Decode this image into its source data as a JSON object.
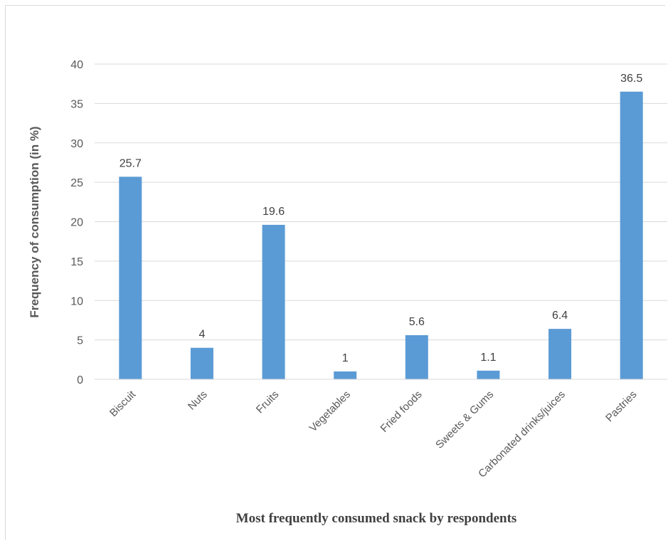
{
  "chart_data": {
    "type": "bar",
    "title": "",
    "xlabel": "Most frequently  consumed snack by respondents",
    "ylabel": "Frequency of consumption (in %)",
    "categories": [
      "Biscuit",
      "Nuts",
      "Fruits",
      "Vegetables",
      "Fried foods",
      "Sweets & Gums",
      "Carbonated drinks/juices",
      "Pastries"
    ],
    "values": [
      25.7,
      4,
      19.6,
      1,
      5.6,
      1.1,
      6.4,
      36.5
    ],
    "data_labels": [
      "25.7",
      "4",
      "19.6",
      "1",
      "5.6",
      "1.1",
      "6.4",
      "36.5"
    ],
    "ylim": [
      0,
      40
    ],
    "yticks": [
      0,
      5,
      10,
      15,
      20,
      25,
      30,
      35,
      40
    ],
    "grid": true,
    "legend": "none",
    "bar_color": "#5b9bd5",
    "gridline_color": "#d9d9d9"
  }
}
